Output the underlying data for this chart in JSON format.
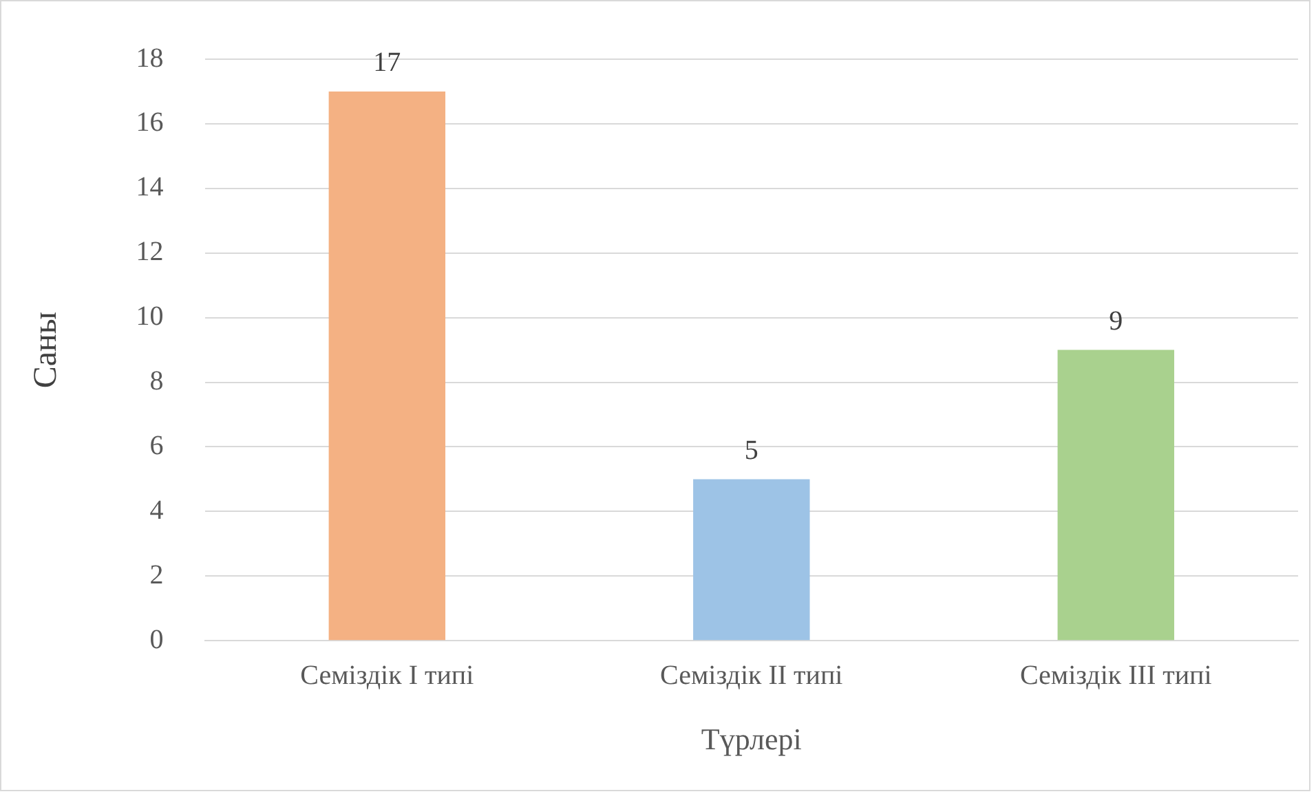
{
  "chart_data": {
    "type": "bar",
    "xlabel": "Түрлері",
    "ylabel": "Саны",
    "categories": [
      "Семіздік I типі",
      "Семіздік II типі",
      "Семіздік III типі"
    ],
    "values": [
      17,
      5,
      9
    ],
    "colors": [
      "#f4b183",
      "#9dc3e6",
      "#a9d18e"
    ],
    "ylim": [
      0,
      18
    ],
    "yticks": [
      0,
      2,
      4,
      6,
      8,
      10,
      12,
      14,
      16,
      18
    ],
    "grid": "y",
    "legend": false,
    "data_labels": true
  }
}
